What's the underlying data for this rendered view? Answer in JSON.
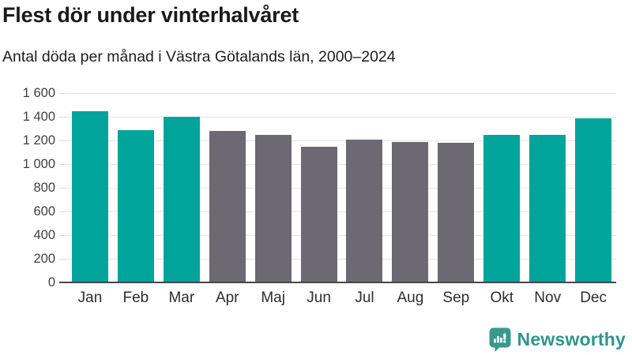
{
  "chart_data": {
    "type": "bar",
    "title": "Flest dör under vinterhalvåret",
    "subtitle": "Antal döda per månad i Västra Götalands län, 2000–2024",
    "categories": [
      "Jan",
      "Feb",
      "Mar",
      "Apr",
      "Maj",
      "Jun",
      "Jul",
      "Aug",
      "Sep",
      "Okt",
      "Nov",
      "Dec"
    ],
    "values": [
      1450,
      1285,
      1400,
      1280,
      1245,
      1145,
      1210,
      1185,
      1180,
      1245,
      1250,
      1390
    ],
    "highlighted": [
      true,
      true,
      true,
      false,
      false,
      false,
      false,
      false,
      false,
      true,
      true,
      true
    ],
    "xlabel": "",
    "ylabel": "",
    "ylim": [
      0,
      1600
    ],
    "yticks": [
      0,
      200,
      400,
      600,
      800,
      1000,
      1200,
      1400,
      1600
    ],
    "ytick_labels": [
      "0",
      "200",
      "400",
      "600",
      "800",
      "1 000",
      "1 200",
      "1 400",
      "1 600"
    ],
    "grid": "horizontal",
    "legend": false,
    "colors": {
      "highlight": "#00a49b",
      "muted": "#6c6973"
    }
  },
  "footer": {
    "brand": "Newsworthy",
    "logo_icon": "newsworthy-speech-bubble-bar-chart-icon",
    "brand_color": "#2e968b",
    "icon_color": "#38998b"
  }
}
